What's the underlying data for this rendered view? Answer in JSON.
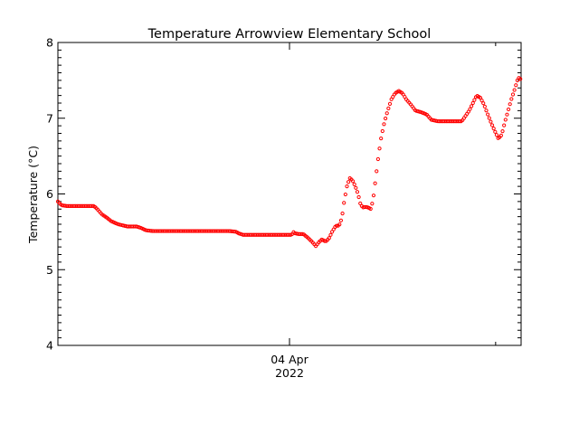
{
  "chart_data": {
    "type": "scatter",
    "title": "Temperature Arrowview Elementary School",
    "xlabel": "",
    "ylabel": "Temperature (°C)",
    "ylim": [
      4,
      8
    ],
    "yticks": [
      4,
      5,
      6,
      7,
      8
    ],
    "xticks": [
      {
        "position": 0.5,
        "label": "04 Apr",
        "label2": "2022"
      }
    ],
    "x_unit": "fraction of displayed time span",
    "xlim": [
      0,
      1
    ],
    "grid": false,
    "legend": "none",
    "marker_color": "#ff0000",
    "series": [
      {
        "points": [
          [
            0.0,
            5.9
          ],
          [
            0.008,
            5.85
          ],
          [
            0.02,
            5.84
          ],
          [
            0.04,
            5.84
          ],
          [
            0.06,
            5.84
          ],
          [
            0.078,
            5.84
          ],
          [
            0.085,
            5.8
          ],
          [
            0.095,
            5.73
          ],
          [
            0.105,
            5.69
          ],
          [
            0.115,
            5.64
          ],
          [
            0.13,
            5.6
          ],
          [
            0.15,
            5.57
          ],
          [
            0.17,
            5.57
          ],
          [
            0.18,
            5.55
          ],
          [
            0.19,
            5.52
          ],
          [
            0.205,
            5.51
          ],
          [
            0.22,
            5.51
          ],
          [
            0.25,
            5.51
          ],
          [
            0.28,
            5.51
          ],
          [
            0.31,
            5.51
          ],
          [
            0.34,
            5.51
          ],
          [
            0.37,
            5.51
          ],
          [
            0.385,
            5.5
          ],
          [
            0.39,
            5.48
          ],
          [
            0.4,
            5.46
          ],
          [
            0.43,
            5.46
          ],
          [
            0.46,
            5.46
          ],
          [
            0.49,
            5.46
          ],
          [
            0.505,
            5.46
          ],
          [
            0.508,
            5.5
          ],
          [
            0.512,
            5.48
          ],
          [
            0.52,
            5.47
          ],
          [
            0.53,
            5.47
          ],
          [
            0.54,
            5.42
          ],
          [
            0.55,
            5.36
          ],
          [
            0.557,
            5.31
          ],
          [
            0.563,
            5.36
          ],
          [
            0.57,
            5.4
          ],
          [
            0.578,
            5.37
          ],
          [
            0.585,
            5.41
          ],
          [
            0.592,
            5.5
          ],
          [
            0.6,
            5.58
          ],
          [
            0.607,
            5.58
          ],
          [
            0.613,
            5.68
          ],
          [
            0.618,
            5.9
          ],
          [
            0.624,
            6.1
          ],
          [
            0.63,
            6.21
          ],
          [
            0.636,
            6.18
          ],
          [
            0.642,
            6.1
          ],
          [
            0.648,
            6.0
          ],
          [
            0.653,
            5.87
          ],
          [
            0.658,
            5.82
          ],
          [
            0.664,
            5.83
          ],
          [
            0.67,
            5.82
          ],
          [
            0.676,
            5.8
          ],
          [
            0.681,
            5.95
          ],
          [
            0.686,
            6.2
          ],
          [
            0.692,
            6.5
          ],
          [
            0.698,
            6.75
          ],
          [
            0.705,
            6.95
          ],
          [
            0.712,
            7.1
          ],
          [
            0.72,
            7.25
          ],
          [
            0.728,
            7.33
          ],
          [
            0.736,
            7.36
          ],
          [
            0.744,
            7.33
          ],
          [
            0.752,
            7.25
          ],
          [
            0.762,
            7.18
          ],
          [
            0.772,
            7.1
          ],
          [
            0.784,
            7.08
          ],
          [
            0.796,
            7.05
          ],
          [
            0.806,
            6.98
          ],
          [
            0.82,
            6.96
          ],
          [
            0.84,
            6.96
          ],
          [
            0.86,
            6.96
          ],
          [
            0.872,
            6.96
          ],
          [
            0.88,
            7.03
          ],
          [
            0.888,
            7.1
          ],
          [
            0.896,
            7.2
          ],
          [
            0.904,
            7.3
          ],
          [
            0.912,
            7.27
          ],
          [
            0.92,
            7.18
          ],
          [
            0.928,
            7.05
          ],
          [
            0.936,
            6.93
          ],
          [
            0.944,
            6.82
          ],
          [
            0.951,
            6.73
          ],
          [
            0.958,
            6.78
          ],
          [
            0.965,
            6.95
          ],
          [
            0.972,
            7.1
          ],
          [
            0.979,
            7.25
          ],
          [
            0.986,
            7.38
          ],
          [
            0.992,
            7.5
          ],
          [
            0.997,
            7.55
          ],
          [
            1.0,
            7.48
          ]
        ]
      }
    ]
  }
}
